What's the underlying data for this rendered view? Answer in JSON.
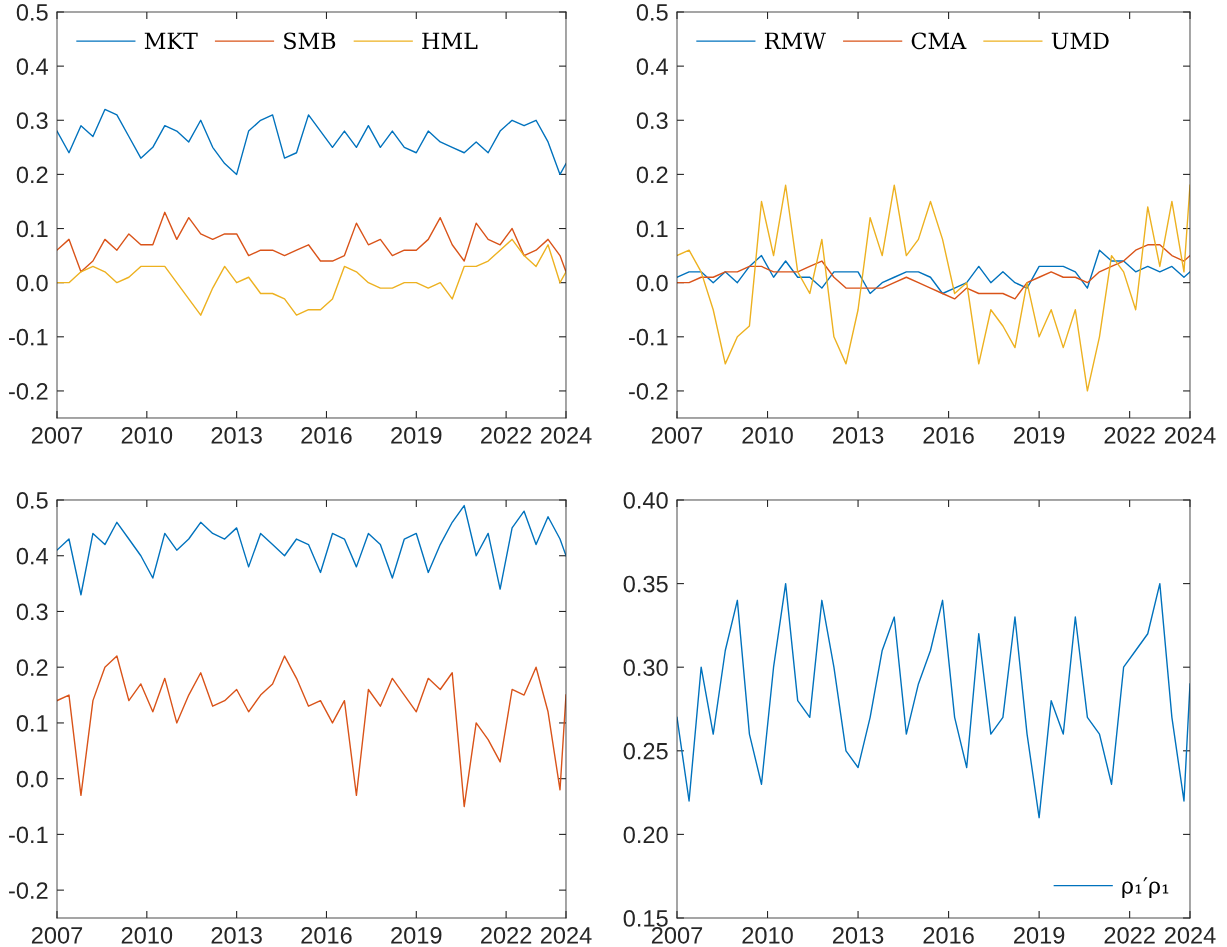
{
  "chart_data": [
    {
      "type": "line",
      "x": [
        2007.0,
        2007.4,
        2007.8,
        2008.2,
        2008.6,
        2009.0,
        2009.4,
        2009.8,
        2010.2,
        2010.6,
        2011.0,
        2011.4,
        2011.8,
        2012.2,
        2012.6,
        2013.0,
        2013.4,
        2013.8,
        2014.2,
        2014.6,
        2015.0,
        2015.4,
        2015.8,
        2016.2,
        2016.6,
        2017.0,
        2017.4,
        2017.8,
        2018.2,
        2018.6,
        2019.0,
        2019.4,
        2019.8,
        2020.2,
        2020.6,
        2021.0,
        2021.4,
        2021.8,
        2022.2,
        2022.6,
        2023.0,
        2023.4,
        2023.8,
        2024.0
      ],
      "series": [
        {
          "name": "MKT",
          "color": "#0072bd",
          "values": [
            0.28,
            0.24,
            0.29,
            0.27,
            0.32,
            0.31,
            0.27,
            0.23,
            0.25,
            0.29,
            0.28,
            0.26,
            0.3,
            0.25,
            0.22,
            0.2,
            0.28,
            0.3,
            0.31,
            0.23,
            0.24,
            0.31,
            0.28,
            0.25,
            0.28,
            0.25,
            0.29,
            0.25,
            0.28,
            0.25,
            0.24,
            0.28,
            0.26,
            0.25,
            0.24,
            0.26,
            0.24,
            0.28,
            0.3,
            0.29,
            0.3,
            0.26,
            0.2,
            0.22
          ]
        },
        {
          "name": "SMB",
          "color": "#d95319",
          "values": [
            0.06,
            0.08,
            0.02,
            0.04,
            0.08,
            0.06,
            0.09,
            0.07,
            0.07,
            0.13,
            0.08,
            0.12,
            0.09,
            0.08,
            0.09,
            0.09,
            0.05,
            0.06,
            0.06,
            0.05,
            0.06,
            0.07,
            0.04,
            0.04,
            0.05,
            0.11,
            0.07,
            0.08,
            0.05,
            0.06,
            0.06,
            0.08,
            0.12,
            0.07,
            0.04,
            0.11,
            0.08,
            0.07,
            0.1,
            0.05,
            0.06,
            0.08,
            0.05,
            0.02
          ]
        },
        {
          "name": "HML",
          "color": "#edb120",
          "values": [
            0.0,
            0.0,
            0.02,
            0.03,
            0.02,
            0.0,
            0.01,
            0.03,
            0.03,
            0.03,
            0.0,
            -0.03,
            -0.06,
            -0.01,
            0.03,
            0.0,
            0.01,
            -0.02,
            -0.02,
            -0.03,
            -0.06,
            -0.05,
            -0.05,
            -0.03,
            0.03,
            0.02,
            0.0,
            -0.01,
            -0.01,
            0.0,
            0.0,
            -0.01,
            0.0,
            -0.03,
            0.03,
            0.03,
            0.04,
            0.06,
            0.08,
            0.05,
            0.03,
            0.07,
            0.0,
            0.02
          ]
        }
      ],
      "xlim": [
        2007,
        2024
      ],
      "xticks": [
        2007,
        2010,
        2013,
        2016,
        2019,
        2022,
        2024
      ],
      "ylim": [
        -0.25,
        0.5
      ],
      "yticks": [
        -0.2,
        -0.1,
        {
          "value": 0,
          "label": "0.0"
        },
        0.1,
        0.2,
        0.3,
        0.4,
        0.5
      ],
      "legend": "top left",
      "grid": false
    },
    {
      "type": "line",
      "x": [
        2007.0,
        2007.4,
        2007.8,
        2008.2,
        2008.6,
        2009.0,
        2009.4,
        2009.8,
        2010.2,
        2010.6,
        2011.0,
        2011.4,
        2011.8,
        2012.2,
        2012.6,
        2013.0,
        2013.4,
        2013.8,
        2014.2,
        2014.6,
        2015.0,
        2015.4,
        2015.8,
        2016.2,
        2016.6,
        2017.0,
        2017.4,
        2017.8,
        2018.2,
        2018.6,
        2019.0,
        2019.4,
        2019.8,
        2020.2,
        2020.6,
        2021.0,
        2021.4,
        2021.8,
        2022.2,
        2022.6,
        2023.0,
        2023.4,
        2023.8,
        2024.0
      ],
      "series": [
        {
          "name": "RMW",
          "color": "#0072bd",
          "values": [
            0.01,
            0.02,
            0.02,
            0.0,
            0.02,
            0.0,
            0.03,
            0.05,
            0.01,
            0.04,
            0.01,
            0.01,
            -0.01,
            0.02,
            0.02,
            0.02,
            -0.02,
            0.0,
            0.01,
            0.02,
            0.02,
            0.01,
            -0.02,
            -0.01,
            0.0,
            0.03,
            0.0,
            0.02,
            0.0,
            -0.01,
            0.03,
            0.03,
            0.03,
            0.02,
            -0.01,
            0.06,
            0.04,
            0.04,
            0.02,
            0.03,
            0.02,
            0.03,
            0.01,
            0.02
          ]
        },
        {
          "name": "CMA",
          "color": "#d95319",
          "values": [
            0.0,
            0.0,
            0.01,
            0.01,
            0.02,
            0.02,
            0.03,
            0.03,
            0.02,
            0.02,
            0.02,
            0.03,
            0.04,
            0.01,
            -0.01,
            -0.01,
            -0.01,
            -0.01,
            0.0,
            0.01,
            0.0,
            -0.01,
            -0.02,
            -0.03,
            -0.01,
            -0.02,
            -0.02,
            -0.02,
            -0.03,
            0.0,
            0.01,
            0.02,
            0.01,
            0.01,
            0.0,
            0.02,
            0.03,
            0.04,
            0.06,
            0.07,
            0.07,
            0.05,
            0.04,
            0.05
          ]
        },
        {
          "name": "UMD",
          "color": "#edb120",
          "values": [
            0.05,
            0.06,
            0.02,
            -0.05,
            -0.15,
            -0.1,
            -0.08,
            0.15,
            0.05,
            0.18,
            0.02,
            -0.02,
            0.08,
            -0.1,
            -0.15,
            -0.05,
            0.12,
            0.05,
            0.18,
            0.05,
            0.08,
            0.15,
            0.08,
            -0.02,
            0.0,
            -0.15,
            -0.05,
            -0.08,
            -0.12,
            0.0,
            -0.1,
            -0.05,
            -0.12,
            -0.05,
            -0.2,
            -0.1,
            0.05,
            0.02,
            -0.05,
            0.14,
            0.03,
            0.15,
            0.02,
            0.18
          ]
        }
      ],
      "xlim": [
        2007,
        2024
      ],
      "xticks": [
        2007,
        2010,
        2013,
        2016,
        2019,
        2022,
        2024
      ],
      "ylim": [
        -0.25,
        0.5
      ],
      "yticks": [
        -0.2,
        -0.1,
        {
          "value": 0,
          "label": "0.0"
        },
        0.1,
        0.2,
        0.3,
        0.4,
        0.5
      ],
      "legend": "top left",
      "grid": false
    },
    {
      "type": "line",
      "x": [
        2007.0,
        2007.4,
        2007.8,
        2008.2,
        2008.6,
        2009.0,
        2009.4,
        2009.8,
        2010.2,
        2010.6,
        2011.0,
        2011.4,
        2011.8,
        2012.2,
        2012.6,
        2013.0,
        2013.4,
        2013.8,
        2014.2,
        2014.6,
        2015.0,
        2015.4,
        2015.8,
        2016.2,
        2016.6,
        2017.0,
        2017.4,
        2017.8,
        2018.2,
        2018.6,
        2019.0,
        2019.4,
        2019.8,
        2020.2,
        2020.6,
        2021.0,
        2021.4,
        2021.8,
        2022.2,
        2022.6,
        2023.0,
        2023.4,
        2023.8,
        2024.0
      ],
      "series": [
        {
          "color": "#0072bd",
          "values": [
            0.41,
            0.43,
            0.33,
            0.44,
            0.42,
            0.46,
            0.43,
            0.4,
            0.36,
            0.44,
            0.41,
            0.43,
            0.46,
            0.44,
            0.43,
            0.45,
            0.38,
            0.44,
            0.42,
            0.4,
            0.43,
            0.42,
            0.37,
            0.44,
            0.43,
            0.38,
            0.44,
            0.42,
            0.36,
            0.43,
            0.44,
            0.37,
            0.42,
            0.46,
            0.49,
            0.4,
            0.44,
            0.34,
            0.45,
            0.48,
            0.42,
            0.47,
            0.43,
            0.4
          ]
        },
        {
          "color": "#d95319",
          "values": [
            0.14,
            0.15,
            -0.03,
            0.14,
            0.2,
            0.22,
            0.14,
            0.17,
            0.12,
            0.18,
            0.1,
            0.15,
            0.19,
            0.13,
            0.14,
            0.16,
            0.12,
            0.15,
            0.17,
            0.22,
            0.18,
            0.13,
            0.14,
            0.1,
            0.14,
            -0.03,
            0.16,
            0.13,
            0.18,
            0.15,
            0.12,
            0.18,
            0.16,
            0.19,
            -0.05,
            0.1,
            0.07,
            0.03,
            0.16,
            0.15,
            0.2,
            0.12,
            -0.02,
            0.15
          ]
        }
      ],
      "xlim": [
        2007,
        2024
      ],
      "xticks": [
        2007,
        2010,
        2013,
        2016,
        2019,
        2022,
        2024
      ],
      "ylim": [
        -0.25,
        0.5
      ],
      "yticks": [
        -0.2,
        -0.1,
        {
          "value": 0,
          "label": "0.0"
        },
        0.1,
        0.2,
        0.3,
        0.4,
        0.5
      ],
      "grid": false
    },
    {
      "type": "line",
      "x": [
        2007.0,
        2007.4,
        2007.8,
        2008.2,
        2008.6,
        2009.0,
        2009.4,
        2009.8,
        2010.2,
        2010.6,
        2011.0,
        2011.4,
        2011.8,
        2012.2,
        2012.6,
        2013.0,
        2013.4,
        2013.8,
        2014.2,
        2014.6,
        2015.0,
        2015.4,
        2015.8,
        2016.2,
        2016.6,
        2017.0,
        2017.4,
        2017.8,
        2018.2,
        2018.6,
        2019.0,
        2019.4,
        2019.8,
        2020.2,
        2020.6,
        2021.0,
        2021.4,
        2021.8,
        2022.2,
        2022.6,
        2023.0,
        2023.4,
        2023.8,
        2024.0
      ],
      "series": [
        {
          "name": "ρ₁′ρ₁",
          "color": "#0072bd",
          "values": [
            0.27,
            0.22,
            0.3,
            0.26,
            0.31,
            0.34,
            0.26,
            0.23,
            0.3,
            0.35,
            0.28,
            0.27,
            0.34,
            0.3,
            0.25,
            0.24,
            0.27,
            0.31,
            0.33,
            0.26,
            0.29,
            0.31,
            0.34,
            0.27,
            0.24,
            0.32,
            0.26,
            0.27,
            0.33,
            0.26,
            0.21,
            0.28,
            0.26,
            0.33,
            0.27,
            0.26,
            0.23,
            0.3,
            0.31,
            0.32,
            0.35,
            0.27,
            0.22,
            0.29
          ]
        }
      ],
      "xlim": [
        2007,
        2024
      ],
      "xticks": [
        2007,
        2010,
        2013,
        2016,
        2019,
        2022,
        2024
      ],
      "ylim": [
        0.15,
        0.4
      ],
      "yticks": [
        {
          "value": 0.15,
          "label": "0.15"
        },
        {
          "value": 0.2,
          "label": "0.20"
        },
        {
          "value": 0.25,
          "label": "0.25"
        },
        {
          "value": 0.3,
          "label": "0.30"
        },
        {
          "value": 0.35,
          "label": "0.35"
        },
        {
          "value": 0.4,
          "label": "0.40"
        }
      ],
      "legend": "bottom right",
      "grid": false
    }
  ]
}
